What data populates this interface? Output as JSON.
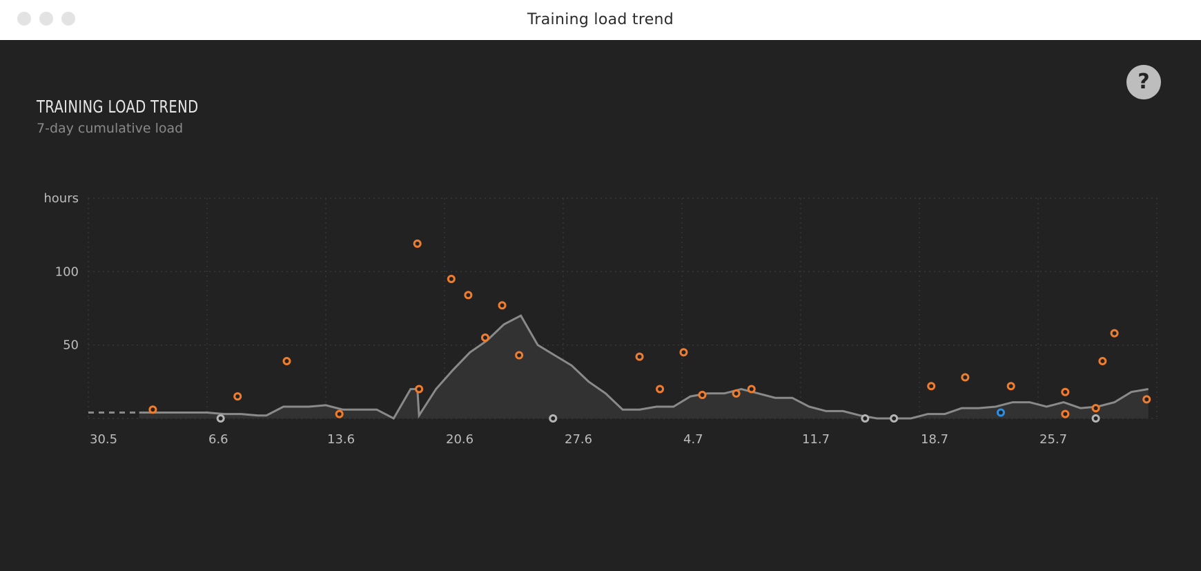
{
  "window": {
    "title": "Training load trend"
  },
  "help": {
    "label": "?"
  },
  "chart_data": {
    "type": "line",
    "title": "TRAINING LOAD TREND",
    "subtitle": "7-day cumulative load",
    "ylabel": "hours",
    "x_tick_labels": [
      "30.5",
      "6.6",
      "13.6",
      "20.6",
      "27.6",
      "4.7",
      "11.7",
      "18.7",
      "25.7"
    ],
    "y_ticks": [
      50,
      100
    ],
    "ylim": [
      0,
      150
    ],
    "x_range": [
      0,
      63
    ],
    "x_tick_values": [
      0,
      7,
      14,
      21,
      28,
      35,
      42,
      49,
      56
    ],
    "grid": true,
    "series": [
      {
        "kind": "area-line",
        "dashed_until": 3,
        "x": [
          0,
          3,
          4,
          5,
          6,
          7,
          8,
          9,
          10,
          10.5,
          11.5,
          12,
          13,
          14,
          15,
          16,
          17,
          18,
          19,
          19.4,
          19.5,
          20.5,
          21.5,
          22.5,
          23.5,
          24.5,
          25.5,
          26.5,
          27.5,
          28.5,
          29.5,
          30.5,
          31.5,
          32.5,
          33.5,
          34.5,
          35.5,
          36.5,
          37.5,
          38.5,
          39.5,
          40.5,
          41.5,
          42.5,
          43.5,
          44.5,
          45.5,
          46.5,
          47.5,
          48.5,
          49.5,
          50.5,
          51.5,
          52.5,
          53.5,
          54.5,
          55.5,
          56.5,
          57.5,
          58.5,
          59.5,
          60.5,
          61.5,
          62.5
        ],
        "y": [
          4,
          4,
          4,
          4,
          4,
          4,
          3,
          3,
          2,
          2,
          8,
          8,
          8,
          9,
          6,
          6,
          6,
          0,
          20,
          20,
          2,
          20,
          33,
          45,
          53,
          64,
          70,
          50,
          43,
          36,
          25,
          17,
          6,
          6,
          8,
          8,
          15,
          17,
          17,
          20,
          17,
          14,
          14,
          8,
          5,
          5,
          2,
          0,
          0,
          0,
          3,
          3,
          7,
          7,
          8,
          11,
          11,
          8,
          11,
          7,
          8,
          11,
          18,
          20
        ]
      },
      {
        "kind": "points",
        "color": "#f07d2e",
        "x": [
          3.8,
          8.8,
          11.7,
          14.8,
          19.4,
          19.5,
          21.4,
          22.4,
          23.4,
          24.4,
          25.4,
          32.5,
          33.7,
          35.1,
          36.2,
          38.2,
          39.1,
          49.7,
          51.7,
          54.4,
          57.6,
          57.6,
          59.4,
          59.8,
          60.5,
          62.4
        ],
        "y": [
          6,
          15,
          39,
          3,
          119,
          20,
          95,
          84,
          55,
          77,
          43,
          42,
          20,
          45,
          16,
          17,
          20,
          22,
          28,
          22,
          18,
          3,
          7,
          39,
          58,
          13
        ]
      },
      {
        "kind": "points",
        "color": "#b4b4b4",
        "x": [
          7.8,
          27.4,
          45.8,
          47.5,
          59.4
        ],
        "y": [
          0,
          0,
          0,
          0,
          0
        ]
      },
      {
        "kind": "points",
        "color": "#2f8fde",
        "x": [
          53.8
        ],
        "y": [
          4
        ]
      }
    ]
  }
}
